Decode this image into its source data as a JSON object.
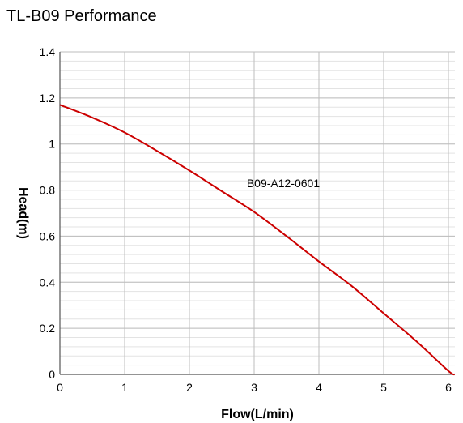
{
  "chart_data": {
    "type": "line",
    "title": "TL-B09 Performance",
    "xlabel": "Flow(L/min)",
    "ylabel": "Head(m)",
    "xlim": [
      0,
      6.1
    ],
    "ylim": [
      0,
      1.4
    ],
    "x_ticks": [
      "0",
      "1",
      "2",
      "3",
      "4",
      "5",
      "6"
    ],
    "y_ticks": [
      "0",
      "0.2",
      "0.4",
      "0.6",
      "0.8",
      "1",
      "1.2",
      "1.4"
    ],
    "grid": true,
    "minor_grid": true,
    "annotations": [
      {
        "text": "B09-A12-0601",
        "x": 3.45,
        "y": 0.83
      }
    ],
    "series": [
      {
        "color": "#cc0000",
        "x": [
          0,
          0.5,
          1,
          1.5,
          2,
          2.5,
          3,
          3.5,
          4,
          4.5,
          5,
          5.5,
          6,
          6.1
        ],
        "y": [
          1.17,
          1.115,
          1.05,
          0.97,
          0.885,
          0.795,
          0.705,
          0.6,
          0.49,
          0.385,
          0.265,
          0.145,
          0.015,
          0
        ]
      }
    ]
  }
}
